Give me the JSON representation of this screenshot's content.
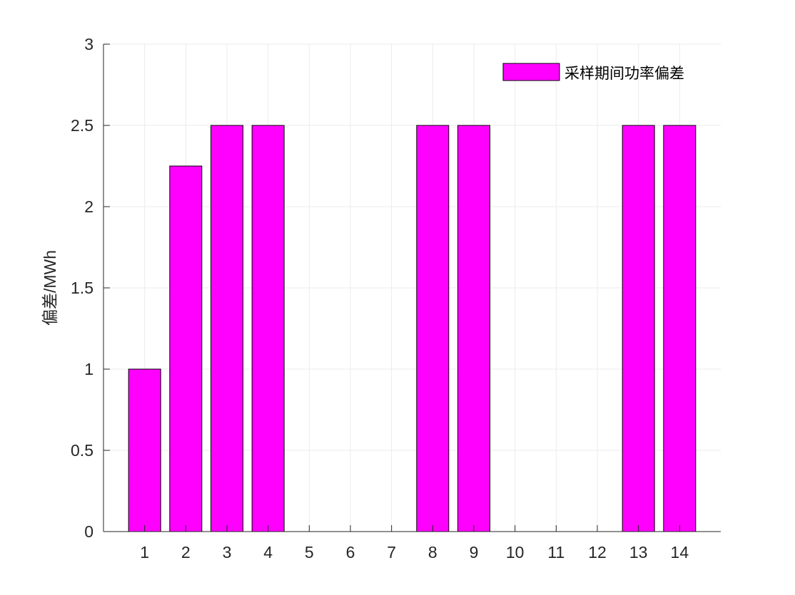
{
  "chart_data": {
    "type": "bar",
    "categories": [
      "1",
      "2",
      "3",
      "4",
      "5",
      "6",
      "7",
      "8",
      "9",
      "10",
      "11",
      "12",
      "13",
      "14"
    ],
    "series": [
      {
        "name": "采样期间功率偏差",
        "values": [
          1,
          2.25,
          2.5,
          2.5,
          0,
          0,
          0,
          2.5,
          2.5,
          0,
          0,
          0,
          2.5,
          2.5
        ],
        "color": "#ff00ff"
      }
    ],
    "title": "",
    "xlabel": "",
    "ylabel": "偏差/MWh",
    "ylim": [
      0,
      3
    ],
    "yticks": [
      0,
      0.5,
      1,
      1.5,
      2,
      2.5,
      3
    ],
    "ytick_labels": [
      "0",
      "0.5",
      "1",
      "1.5",
      "2",
      "2.5",
      "3"
    ],
    "grid": true,
    "legend_position": "top-right",
    "colors": {
      "bar_fill": "#ff00ff",
      "bar_edge": "#000000",
      "axis": "#262626",
      "grid": "#ebebeb"
    }
  }
}
